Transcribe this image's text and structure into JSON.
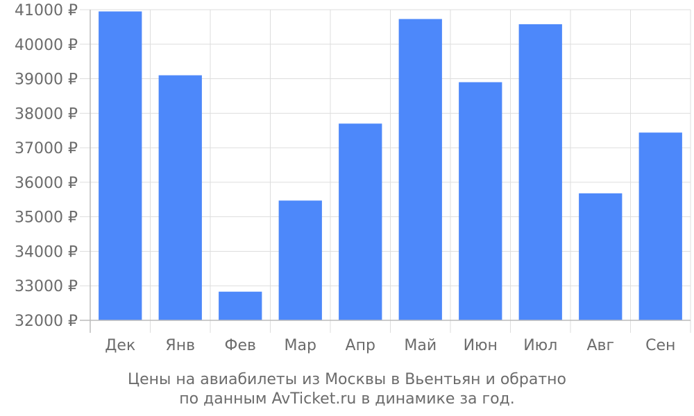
{
  "chart_data": {
    "type": "bar",
    "categories": [
      "Дек",
      "Янв",
      "Фев",
      "Мар",
      "Апр",
      "Май",
      "Июн",
      "Июл",
      "Авг",
      "Сен"
    ],
    "values": [
      40950,
      39100,
      32830,
      35470,
      37700,
      40730,
      38900,
      40580,
      35680,
      37440
    ],
    "ylim": [
      32000,
      41000
    ],
    "yticks": [
      32000,
      33000,
      34000,
      35000,
      36000,
      37000,
      38000,
      39000,
      40000,
      41000
    ],
    "y_unit": "₽",
    "grid": true,
    "bar_color": "#4d88fa",
    "grid_color": "#dddddd",
    "axis_color": "#bbbbbb",
    "text_color": "#6b6b6b"
  },
  "caption": {
    "line1": "Цены на авиабилеты из Москвы в Вьентьян и обратно",
    "line2": "по данным AvTicket.ru в динамике за год."
  }
}
